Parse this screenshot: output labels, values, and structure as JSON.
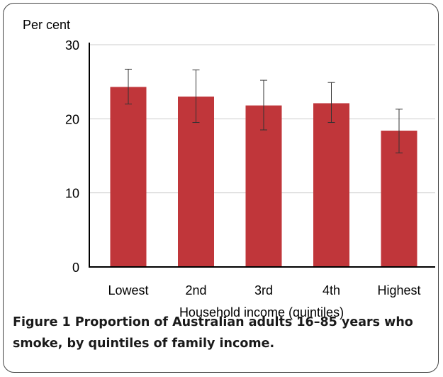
{
  "chart_data": {
    "type": "bar",
    "ylabel": "Per cent",
    "xlabel": "Household income (quintiles)",
    "categories": [
      "Lowest",
      "2nd",
      "3rd",
      "4th",
      "Highest"
    ],
    "values": [
      24.3,
      23.0,
      21.8,
      22.1,
      18.4
    ],
    "error_low": [
      22.0,
      19.5,
      18.5,
      19.5,
      15.4
    ],
    "error_high": [
      26.7,
      26.6,
      25.2,
      24.9,
      21.3
    ],
    "ylim": [
      0,
      30
    ],
    "yticks": [
      0,
      10,
      20,
      30
    ],
    "grid": true,
    "bar_color": "#c0363a",
    "grid_color": "#cccccc",
    "axis_color": "#000000"
  },
  "caption": {
    "label": "Figure 1",
    "text": "Proportion of Australian adults 16–85 years who smoke, by quintiles of family income."
  }
}
